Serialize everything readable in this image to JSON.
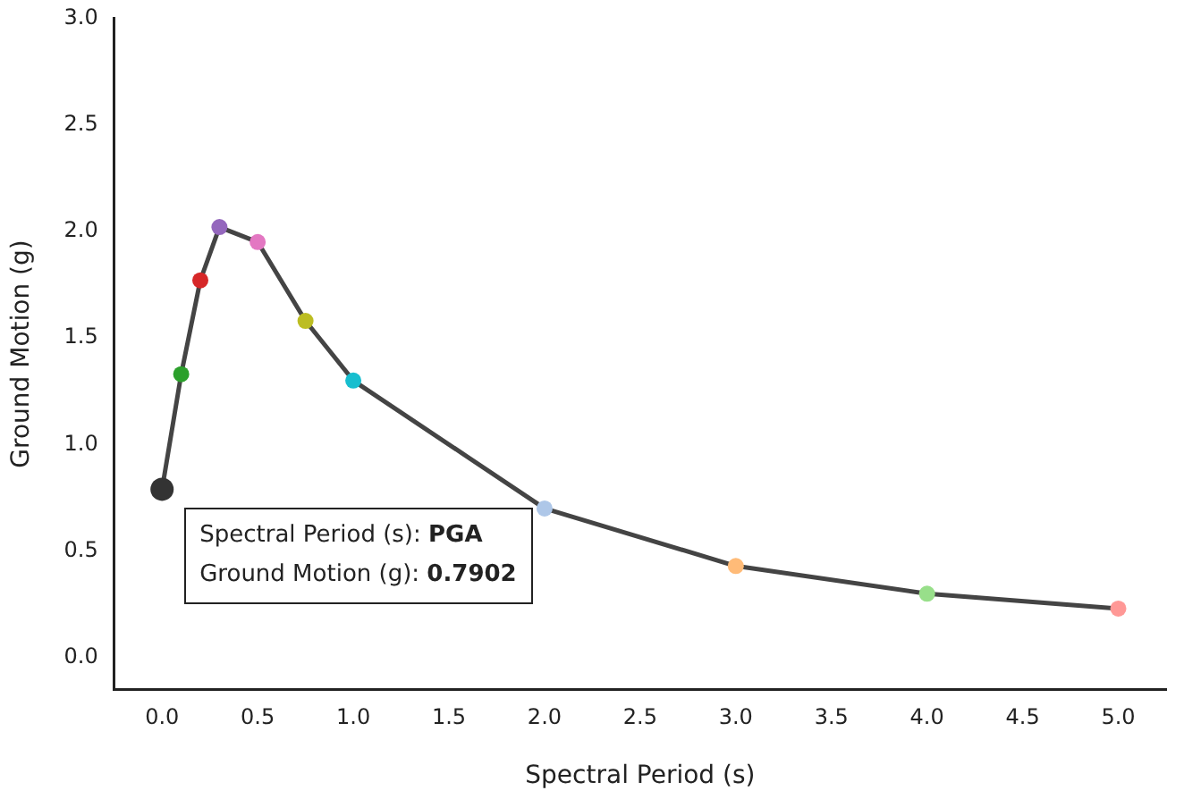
{
  "chart_data": {
    "type": "line",
    "xlabel": "Spectral Period (s)",
    "ylabel": "Ground Motion (g)",
    "x": [
      0,
      0.1,
      0.2,
      0.3,
      0.5,
      0.75,
      1,
      2,
      3,
      4,
      5
    ],
    "series": [
      {
        "color": "#444444",
        "values": [
          0.7902,
          1.33,
          1.77,
          2.02,
          1.95,
          1.58,
          1.3,
          0.7,
          0.43,
          0.3,
          0.23
        ],
        "colors": [
          "#333333",
          "#2ca02c",
          "#d62728",
          "#9467bd",
          "#e377c2",
          "#bcbd22",
          "#17becf",
          "#aec7e8",
          "#ffbb78",
          "#98df8a",
          "#ff9896"
        ]
      }
    ],
    "xlim": [
      -0.25,
      5.25
    ],
    "xticks": [
      {
        "value": 0,
        "label": "0.0"
      },
      0.5,
      {
        "value": 1,
        "label": "1.0"
      },
      1.5,
      {
        "value": 2,
        "label": "2.0"
      },
      2.5,
      {
        "value": 3,
        "label": "3.0"
      },
      3.5,
      {
        "value": 4,
        "label": "4.0"
      },
      4.5,
      {
        "value": 5,
        "label": "5.0"
      }
    ],
    "ylim": [
      -0.15,
      3
    ],
    "yticks": [
      {
        "value": 0,
        "label": "0.0"
      },
      0.5,
      {
        "value": 1,
        "label": "1.0"
      },
      1.5,
      {
        "value": 2,
        "label": "2.0"
      },
      2.5,
      {
        "value": 3,
        "label": "3.0"
      }
    ],
    "annotations": [
      {
        "text": "Spectral Period (s): PGA\nGround Motion (g): 0.7902",
        "x": 0,
        "y": 0.7902
      }
    ],
    "grid": false,
    "legend": false,
    "marker": "circle",
    "line_style": "solid"
  }
}
